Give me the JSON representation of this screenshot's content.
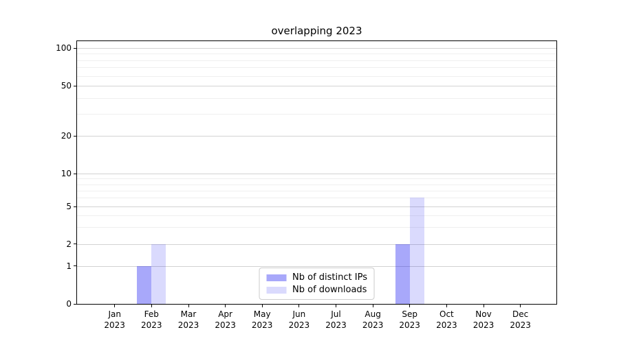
{
  "chart_data": {
    "type": "bar",
    "title": "overlapping 2023",
    "bar_mode": "overlapping",
    "categories": [
      {
        "month": "Jan",
        "year": "2023"
      },
      {
        "month": "Feb",
        "year": "2023"
      },
      {
        "month": "Mar",
        "year": "2023"
      },
      {
        "month": "Apr",
        "year": "2023"
      },
      {
        "month": "May",
        "year": "2023"
      },
      {
        "month": "Jun",
        "year": "2023"
      },
      {
        "month": "Jul",
        "year": "2023"
      },
      {
        "month": "Aug",
        "year": "2023"
      },
      {
        "month": "Sep",
        "year": "2023"
      },
      {
        "month": "Oct",
        "year": "2023"
      },
      {
        "month": "Nov",
        "year": "2023"
      },
      {
        "month": "Dec",
        "year": "2023"
      }
    ],
    "series": [
      {
        "name": "Nb of distinct IPs",
        "color": "#0000f0",
        "alpha": 0.34,
        "values": [
          0,
          1,
          0,
          0,
          0,
          0,
          0,
          0,
          2,
          0,
          0,
          0
        ]
      },
      {
        "name": "Nb of downloads",
        "color": "#0000f0",
        "alpha": 0.145,
        "values": [
          0,
          2,
          0,
          0,
          0,
          0,
          0,
          0,
          6,
          0,
          0,
          0
        ]
      }
    ],
    "y_axis": {
      "scale": "symlog",
      "ticks_major": [
        0,
        1,
        2,
        5,
        10,
        20,
        50,
        100
      ],
      "gridlines_minor": [
        3,
        4,
        6,
        7,
        8,
        9,
        30,
        40,
        60,
        70,
        80,
        90
      ],
      "range": [
        0,
        110
      ]
    },
    "legend": {
      "position": "lower center"
    },
    "grid": true
  }
}
